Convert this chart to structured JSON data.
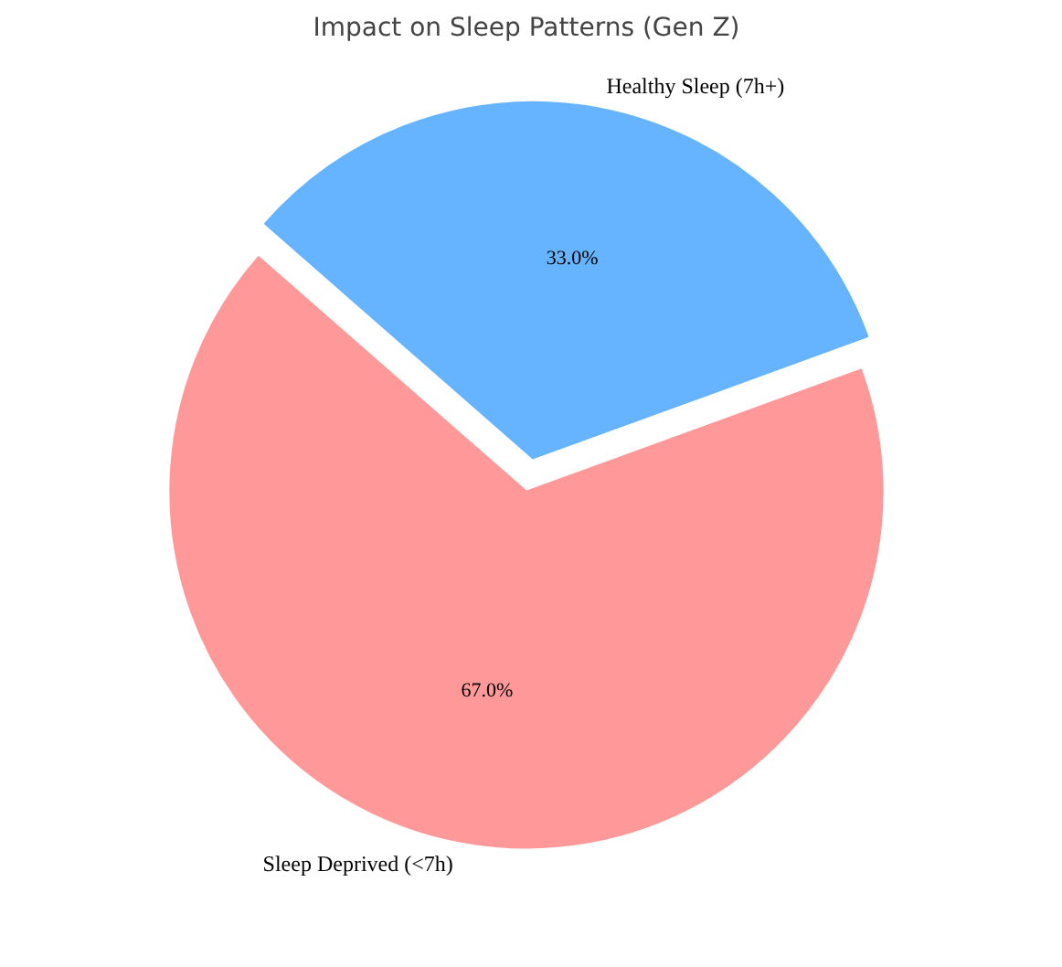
{
  "chart_data": {
    "type": "pie",
    "title": "Impact on Sleep Patterns (Gen Z)",
    "categories": [
      "Healthy Sleep (7h+)",
      "Sleep Deprived (<7h)"
    ],
    "values": [
      33.0,
      67.0
    ],
    "colors": [
      "#66b3ff",
      "#ff9999"
    ],
    "value_labels": [
      "33.0%",
      "67.0%"
    ]
  }
}
